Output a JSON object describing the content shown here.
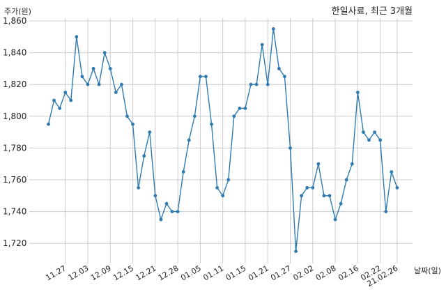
{
  "chart_data": {
    "type": "line",
    "title": "한일사료, 최근 3개월",
    "ylabel": "주가(원)",
    "xlabel": "날짜(일)",
    "ylim": [
      1710,
      1860
    ],
    "y_ticks": [
      1720,
      1740,
      1760,
      1780,
      1800,
      1820,
      1840,
      1860
    ],
    "y_tick_labels": [
      "1,720",
      "1,740",
      "1,760",
      "1,780",
      "1,800",
      "1,820",
      "1,840",
      "1,860"
    ],
    "x_tick_labels": [
      "11.27",
      "12.03",
      "12.09",
      "12.15",
      "12.21",
      "12.28",
      "01.05",
      "01.11",
      "01.15",
      "01.21",
      "01.27",
      "02.02",
      "02.08",
      "02.16",
      "02.22",
      "21.02.26"
    ],
    "x_tick_index": [
      3,
      7,
      11,
      15,
      19,
      23,
      27,
      31,
      35,
      39,
      43,
      47,
      51,
      55,
      59,
      62
    ],
    "grid": true,
    "series": [
      {
        "color": "#2e7ab0",
        "values": [
          1795,
          1810,
          1805,
          1815,
          1810,
          1850,
          1825,
          1820,
          1830,
          1820,
          1840,
          1830,
          1815,
          1820,
          1800,
          1795,
          1755,
          1775,
          1790,
          1750,
          1735,
          1745,
          1740,
          1740,
          1765,
          1785,
          1800,
          1825,
          1825,
          1795,
          1755,
          1750,
          1760,
          1800,
          1805,
          1805,
          1820,
          1820,
          1845,
          1820,
          1855,
          1830,
          1825,
          1780,
          1715,
          1750,
          1755,
          1755,
          1770,
          1750,
          1750,
          1735,
          1745,
          1760,
          1770,
          1815,
          1790,
          1785,
          1790,
          1785,
          1740,
          1765,
          1755
        ]
      }
    ]
  }
}
